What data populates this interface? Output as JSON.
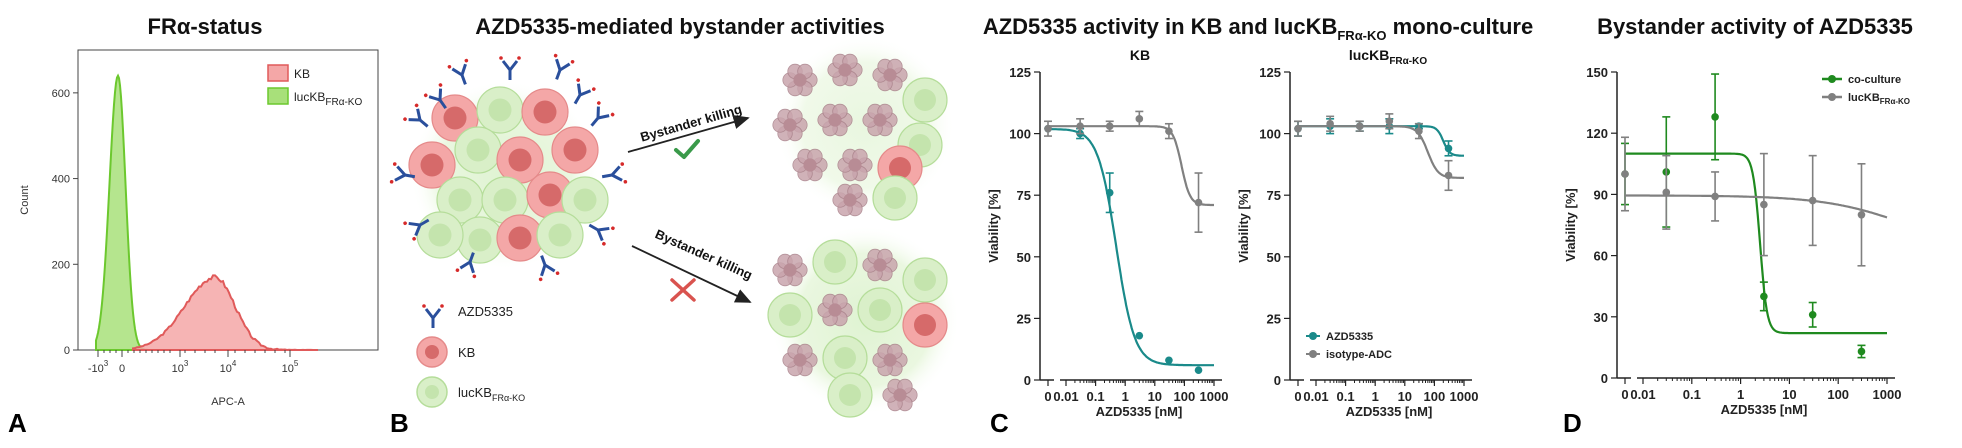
{
  "panels": {
    "A": {
      "letter": "A",
      "title": "FRα-status",
      "xlabel": "APC-A",
      "ylabel": "Count",
      "legend": [
        {
          "label_main": "KB",
          "label_sub": "",
          "color": "#f4a7a7",
          "stroke": "#e05a5a"
        },
        {
          "label_main": "lucKB",
          "label_sub": "FRα-KO",
          "color": "#a8e07a",
          "stroke": "#6cc82e"
        }
      ],
      "y_ticks": [
        "0",
        "200",
        "400",
        "600"
      ],
      "x_ticks": [
        {
          "base": "-10",
          "exp": "3"
        },
        {
          "base": "0",
          "exp": ""
        },
        {
          "base": "10",
          "exp": "3"
        },
        {
          "base": "10",
          "exp": "4"
        },
        {
          "base": "10",
          "exp": "5"
        }
      ]
    },
    "B": {
      "letter": "B",
      "title": "AZD5335-mediated bystander activities",
      "arrow_top_label": "Bystander killing",
      "arrow_bottom_label": "Bystander killing",
      "legend": [
        {
          "label_main": "AZD5335",
          "label_sub": ""
        },
        {
          "label_main": "KB",
          "label_sub": ""
        },
        {
          "label_main": "lucKB",
          "label_sub": "FRα-KO"
        }
      ]
    },
    "C": {
      "letter": "C",
      "title_main": "AZD5335 activity in KB and lucKB",
      "title_sub": "FRα-KO",
      "title_end": " mono-culture",
      "left_subtitle": "KB",
      "right_subtitle_main": "lucKB",
      "right_subtitle_sub": "FRα-KO",
      "xlabel": "AZD5335 [nM]",
      "ylabel": "Viability [%]",
      "y_ticks": [
        "0",
        "25",
        "50",
        "75",
        "100",
        "125"
      ],
      "x_ticks": [
        "0",
        "0.01",
        "0.1",
        "1",
        "10",
        "100",
        "1000"
      ],
      "legend": [
        {
          "label": "AZD5335",
          "color": "#1a8a8a"
        },
        {
          "label": "isotype-ADC",
          "color": "#808080"
        }
      ]
    },
    "D": {
      "letter": "D",
      "title": "Bystander activity of AZD5335",
      "xlabel": "AZD5335 [nM]",
      "ylabel": "Viability [%]",
      "y_ticks": [
        "0",
        "30",
        "60",
        "90",
        "120",
        "150"
      ],
      "x_ticks": [
        "0",
        "0.01",
        "0.1",
        "1",
        "10",
        "100",
        "1000"
      ],
      "legend": [
        {
          "label_main": "co-culture",
          "label_sub": "",
          "color": "#1f8a1f"
        },
        {
          "label_main": "lucKB",
          "label_sub": "FRα-KO",
          "color": "#808080"
        }
      ]
    }
  },
  "chart_data": [
    {
      "type": "area",
      "panel": "A",
      "title": "FRα-status",
      "xlabel": "APC-A",
      "ylabel": "Count",
      "x_scale": "biexponential",
      "ylim": [
        0,
        700
      ],
      "series": [
        {
          "name": "lucKB FRα-KO",
          "peak_x": 0,
          "peak_count": 640
        },
        {
          "name": "KB",
          "peak_x": 6000,
          "peak_count": 170
        }
      ]
    },
    {
      "type": "scatter",
      "panel": "C-left",
      "title": "KB",
      "xlabel": "AZD5335 [nM]",
      "ylabel": "Viability [%]",
      "x_scale": "log",
      "ylim": [
        0,
        125
      ],
      "series": [
        {
          "name": "AZD5335",
          "color": "#1a8a8a",
          "x": [
            0.003,
            0.03,
            0.3,
            3,
            30,
            300
          ],
          "y": [
            102,
            100,
            76,
            18,
            8,
            4
          ],
          "err": [
            0,
            2,
            8,
            0,
            0,
            0
          ],
          "fit": {
            "top": 102,
            "bottom": 6,
            "ec50": 0.5,
            "hill": 1.4
          }
        },
        {
          "name": "isotype-ADC",
          "color": "#808080",
          "x": [
            0.003,
            0.03,
            0.3,
            3,
            30,
            300
          ],
          "y": [
            102,
            103,
            103,
            106,
            101,
            72
          ],
          "err": [
            3,
            3,
            2,
            3,
            3,
            12
          ],
          "fit": {
            "top": 103,
            "bottom": 71,
            "ec50": 80,
            "hill": 3
          }
        }
      ]
    },
    {
      "type": "scatter",
      "panel": "C-right",
      "title": "lucKB FRα-KO",
      "xlabel": "AZD5335 [nM]",
      "ylabel": "Viability [%]",
      "x_scale": "log",
      "ylim": [
        0,
        125
      ],
      "series": [
        {
          "name": "AZD5335",
          "color": "#1a8a8a",
          "x": [
            0.003,
            0.03,
            0.3,
            3,
            30,
            300
          ],
          "y": [
            102,
            103,
            103,
            103,
            103,
            94
          ],
          "err": [
            3,
            3,
            2,
            3,
            1,
            3
          ],
          "fit": {
            "top": 103,
            "bottom": 91,
            "ec50": 200,
            "hill": 4
          }
        },
        {
          "name": "isotype-ADC",
          "color": "#808080",
          "x": [
            0.003,
            0.03,
            0.3,
            3,
            30,
            300
          ],
          "y": [
            102,
            104,
            103,
            105,
            101,
            83
          ],
          "err": [
            3,
            3,
            2,
            3,
            3,
            6
          ],
          "fit": {
            "top": 103,
            "bottom": 82,
            "ec50": 60,
            "hill": 2.5
          }
        }
      ]
    },
    {
      "type": "scatter",
      "panel": "D",
      "title": "Bystander activity of AZD5335",
      "xlabel": "AZD5335 [nM]",
      "ylabel": "Viability [%]",
      "x_scale": "log",
      "ylim": [
        0,
        150
      ],
      "series": [
        {
          "name": "co-culture",
          "color": "#1f8a1f",
          "x": [
            0.003,
            0.03,
            0.3,
            3,
            30,
            300
          ],
          "y": [
            100,
            101,
            128,
            40,
            31,
            13
          ],
          "err": [
            15,
            27,
            21,
            7,
            6,
            3
          ],
          "fit": {
            "top": 110,
            "bottom": 22,
            "ec50": 2.5,
            "hill": 6
          }
        },
        {
          "name": "lucKB FRα-KO",
          "color": "#808080",
          "x": [
            0.003,
            0.03,
            0.3,
            3,
            30,
            300
          ],
          "y": [
            100,
            91,
            89,
            85,
            87,
            80
          ],
          "err": [
            18,
            18,
            12,
            25,
            22,
            25
          ],
          "fit": {
            "top": 89.5,
            "bottom": 60,
            "ec50": 3000,
            "hill": 0.5
          }
        }
      ]
    }
  ]
}
